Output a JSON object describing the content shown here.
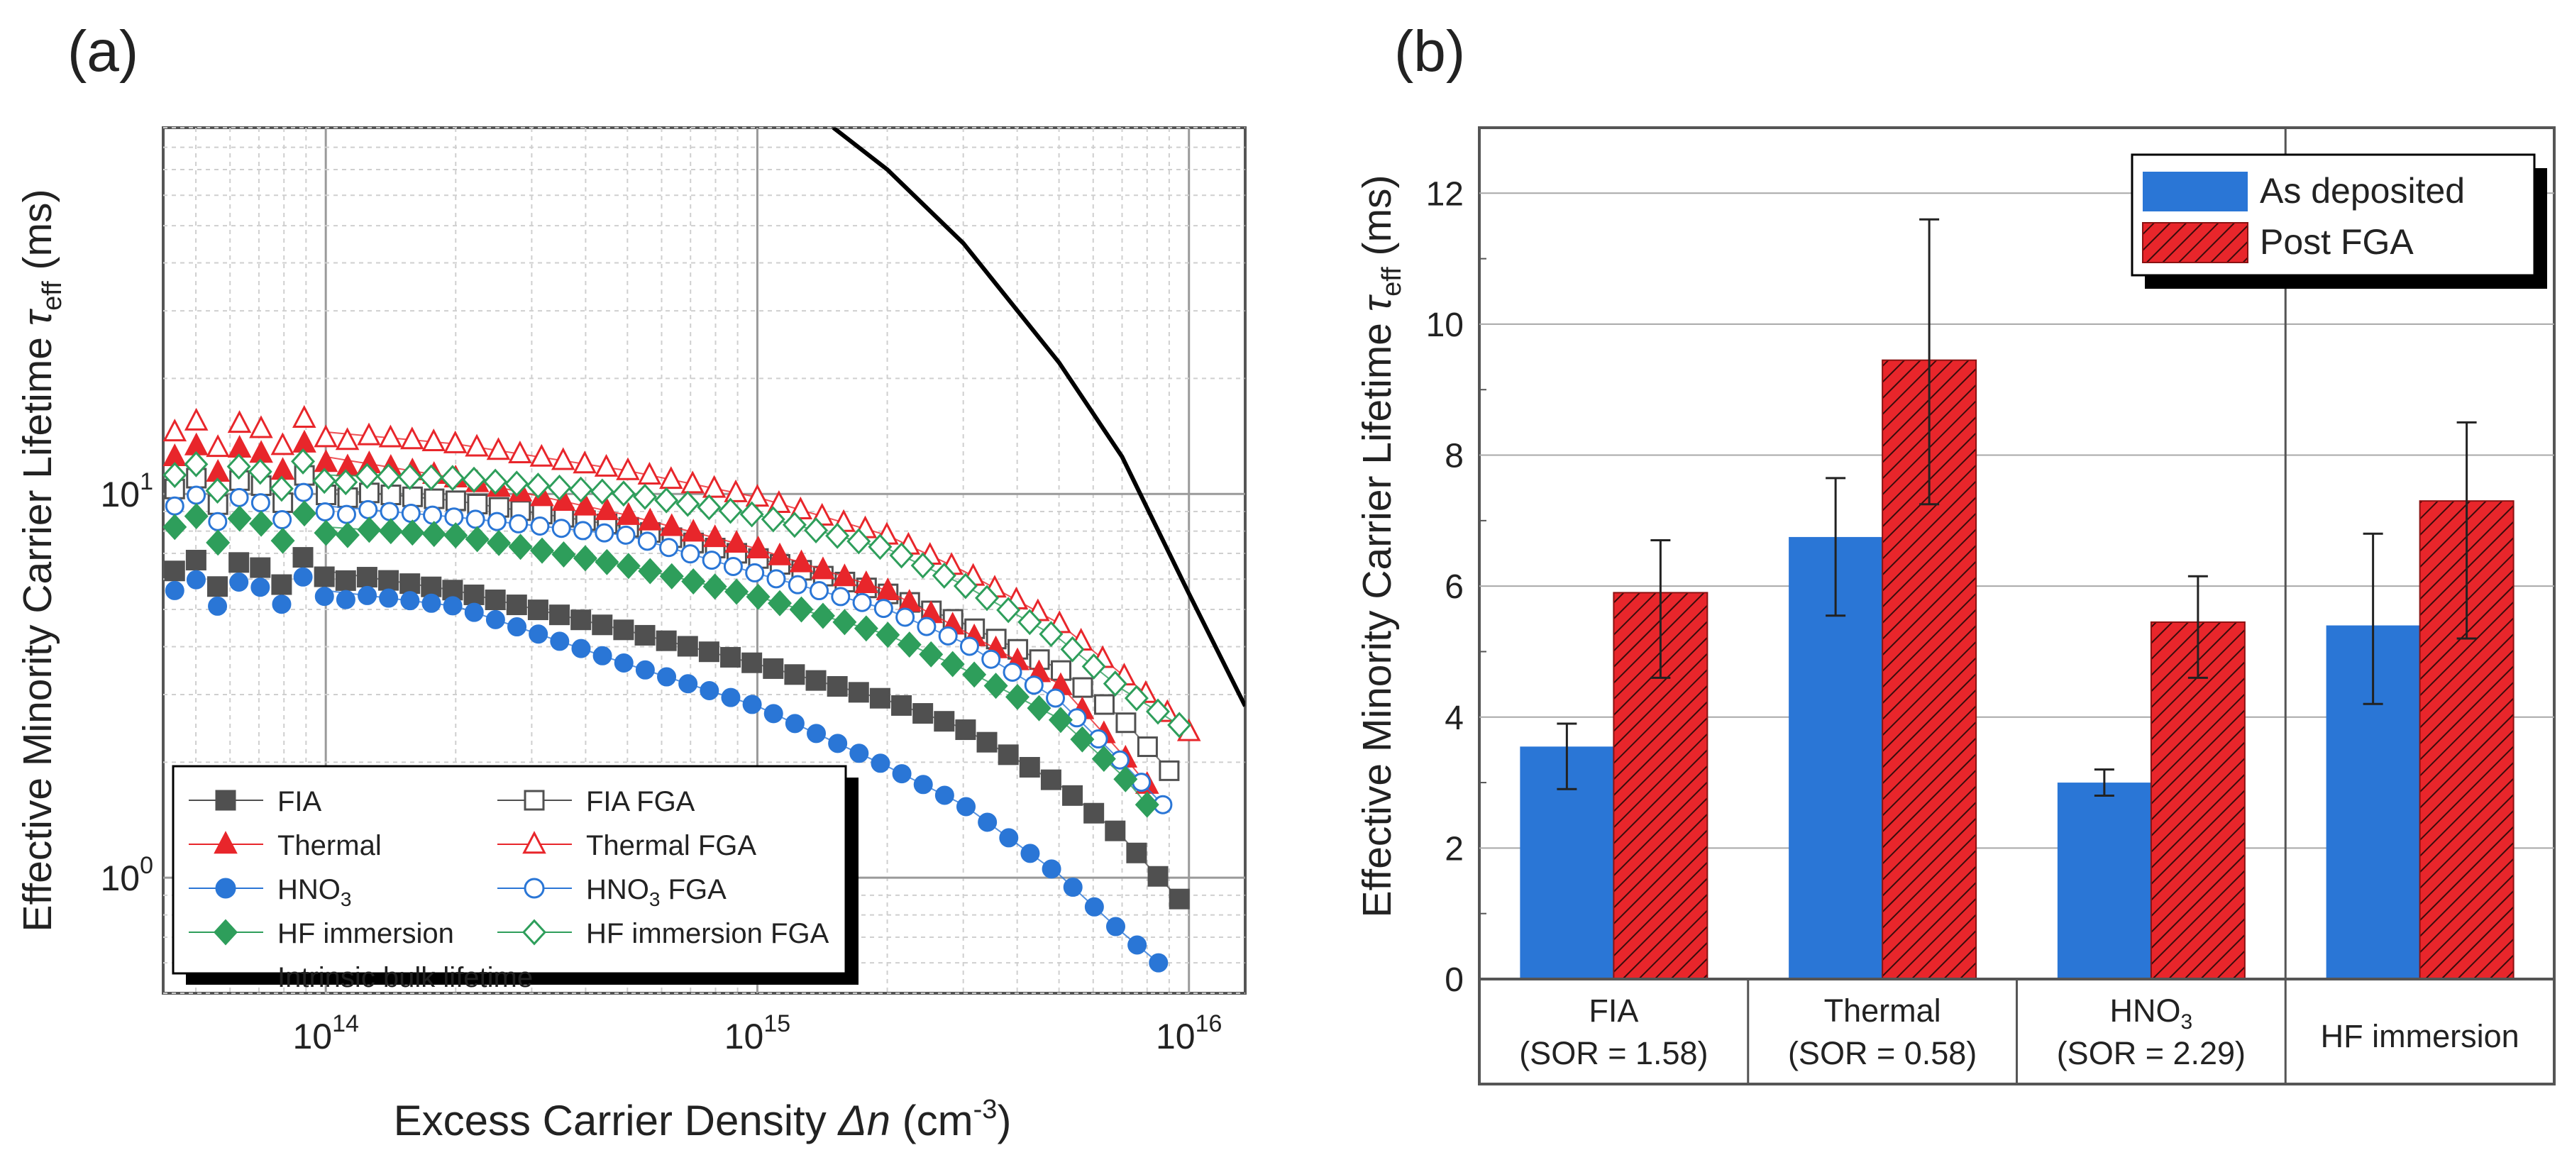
{
  "chart_data": [
    {
      "panel_label": "(a)",
      "type": "scatter",
      "xscale": "log",
      "yscale": "log",
      "xlabel_prefix": "Excess Carrier Density ",
      "xlabel_symbol": "Δn",
      "xlabel_unit": " (cm",
      "xlabel_unit_exp": "-3",
      "xlabel_close": ")",
      "ylabel_prefix": "Effective Minority Carrier Lifetime ",
      "ylabel_symbol": "τ",
      "ylabel_sub": "eff",
      "ylabel_unit": " (ms)",
      "xlim": [
        42000000000000.0,
        1.35e+16
      ],
      "ylim": [
        0.5,
        90
      ],
      "xtick_labels": [
        {
          "value": 100000000000000.0,
          "base": "10",
          "exp": "14"
        },
        {
          "value": 1000000000000000.0,
          "base": "10",
          "exp": "15"
        },
        {
          "value": 1e+16,
          "base": "10",
          "exp": "16"
        }
      ],
      "ytick_labels": [
        {
          "value": 1,
          "base": "10",
          "exp": "0"
        },
        {
          "value": 10,
          "base": "10",
          "exp": "1"
        }
      ],
      "series": [
        {
          "name": "FIA",
          "legend_text": "FIA",
          "legend_sub": "",
          "legend_suffix": "",
          "color": "#505050",
          "marker": "square",
          "filled": true,
          "points": [
            [
              100000000000000.0,
              6.3
            ],
            [
              200000000000000.0,
              5.6
            ],
            [
              500000000000000.0,
              4.4
            ],
            [
              1000000000000000.0,
              3.6
            ],
            [
              2000000000000000.0,
              2.9
            ],
            [
              3000000000000000.0,
              2.45
            ],
            [
              5000000000000000.0,
              1.75
            ],
            [
              7000000000000000.0,
              1.28
            ],
            [
              8000000000000000.0,
              1.08
            ],
            [
              9500000000000000.0,
              0.88
            ]
          ]
        },
        {
          "name": "FIA FGA",
          "legend_text": "FIA FGA",
          "legend_sub": "",
          "legend_suffix": "",
          "color": "#505050",
          "marker": "square",
          "filled": false,
          "points": [
            [
              100000000000000.0,
              10.3
            ],
            [
              200000000000000.0,
              9.6
            ],
            [
              500000000000000.0,
              8.2
            ],
            [
              1000000000000000.0,
              6.8
            ],
            [
              2000000000000000.0,
              5.5
            ],
            [
              3000000000000000.0,
              4.6
            ],
            [
              5000000000000000.0,
              3.5
            ],
            [
              7000000000000000.0,
              2.6
            ],
            [
              9000000000000000.0,
              1.9
            ]
          ]
        },
        {
          "name": "Thermal",
          "legend_text": "Thermal",
          "legend_sub": "",
          "legend_suffix": "",
          "color": "#e8262b",
          "marker": "triangle",
          "filled": true,
          "points": [
            [
              100000000000000.0,
              12.5
            ],
            [
              200000000000000.0,
              11.0
            ],
            [
              500000000000000.0,
              8.8
            ],
            [
              1000000000000000.0,
              7.2
            ],
            [
              2000000000000000.0,
              5.6
            ],
            [
              3000000000000000.0,
              4.4
            ],
            [
              5000000000000000.0,
              3.2
            ],
            [
              7000000000000000.0,
              2.1
            ],
            [
              8000000000000000.0,
              1.75
            ]
          ]
        },
        {
          "name": "Thermal FGA",
          "legend_text": "Thermal FGA",
          "legend_sub": "",
          "legend_suffix": "",
          "color": "#e8262b",
          "marker": "triangle",
          "filled": false,
          "points": [
            [
              100000000000000.0,
              14.5
            ],
            [
              200000000000000.0,
              13.5
            ],
            [
              500000000000000.0,
              11.5
            ],
            [
              1000000000000000.0,
              9.8
            ],
            [
              2000000000000000.0,
              7.8
            ],
            [
              3000000000000000.0,
              6.3
            ],
            [
              5000000000000000.0,
              4.6
            ],
            [
              8000000000000000.0,
              3.0
            ],
            [
              1e+16,
              2.4
            ]
          ]
        },
        {
          "name": "HNO3",
          "legend_text": "HNO",
          "legend_sub": "3",
          "legend_suffix": "",
          "color": "#2a76d6",
          "marker": "circle",
          "filled": true,
          "points": [
            [
              100000000000000.0,
              5.6
            ],
            [
              200000000000000.0,
              5.1
            ],
            [
              500000000000000.0,
              3.6
            ],
            [
              1000000000000000.0,
              2.8
            ],
            [
              2000000000000000.0,
              1.95
            ],
            [
              3000000000000000.0,
              1.55
            ],
            [
              5000000000000000.0,
              1.02
            ],
            [
              7000000000000000.0,
              0.72
            ],
            [
              8500000000000000.0,
              0.6
            ]
          ]
        },
        {
          "name": "HNO3 FGA",
          "legend_text": "HNO",
          "legend_sub": "3",
          "legend_suffix": " FGA",
          "color": "#2a76d6",
          "marker": "circle",
          "filled": false,
          "points": [
            [
              100000000000000.0,
              9.3
            ],
            [
              200000000000000.0,
              8.7
            ],
            [
              500000000000000.0,
              7.8
            ],
            [
              1000000000000000.0,
              6.2
            ],
            [
              2000000000000000.0,
              5.0
            ],
            [
              3000000000000000.0,
              4.1
            ],
            [
              5000000000000000.0,
              2.9
            ],
            [
              7000000000000000.0,
              2.0
            ],
            [
              8700000000000000.0,
              1.55
            ]
          ]
        },
        {
          "name": "HF immersion",
          "legend_text": "HF immersion",
          "legend_sub": "",
          "legend_suffix": "",
          "color": "#2e9e5b",
          "marker": "diamond",
          "filled": true,
          "points": [
            [
              100000000000000.0,
              8.2
            ],
            [
              200000000000000.0,
              7.8
            ],
            [
              500000000000000.0,
              6.5
            ],
            [
              1000000000000000.0,
              5.4
            ],
            [
              2000000000000000.0,
              4.3
            ],
            [
              3000000000000000.0,
              3.5
            ],
            [
              5000000000000000.0,
              2.6
            ],
            [
              7000000000000000.0,
              1.85
            ],
            [
              8000000000000000.0,
              1.55
            ]
          ]
        },
        {
          "name": "HF immersion FGA",
          "legend_text": "HF immersion FGA",
          "legend_sub": "",
          "legend_suffix": "",
          "color": "#2e9e5b",
          "marker": "diamond",
          "filled": false,
          "points": [
            [
              100000000000000.0,
              11.2
            ],
            [
              200000000000000.0,
              11.0
            ],
            [
              500000000000000.0,
              10.0
            ],
            [
              1000000000000000.0,
              8.8
            ],
            [
              2000000000000000.0,
              7.2
            ],
            [
              3000000000000000.0,
              5.8
            ],
            [
              5000000000000000.0,
              4.2
            ],
            [
              7000000000000000.0,
              3.1
            ],
            [
              9500000000000000.0,
              2.5
            ]
          ]
        },
        {
          "name": "Intrinsic bulk lifetime",
          "legend_text": "Intrinsic bulk lifetime",
          "legend_sub": "",
          "legend_suffix": "",
          "color": "#000000",
          "marker": "line",
          "filled": false,
          "points": [
            [
              1500000000000000.0,
              90
            ],
            [
              2000000000000000.0,
              70
            ],
            [
              3000000000000000.0,
              45
            ],
            [
              5000000000000000.0,
              22
            ],
            [
              7000000000000000.0,
              12.5
            ],
            [
              1e+16,
              5.5
            ],
            [
              1.35e+16,
              2.8
            ]
          ]
        }
      ]
    },
    {
      "panel_label": "(b)",
      "type": "bar",
      "ylabel_prefix": "Effective Minority Carrier Lifetime ",
      "ylabel_symbol": "τ",
      "ylabel_sub": "eff",
      "ylabel_unit": " (ms)",
      "ylim": [
        0,
        13
      ],
      "yticks": [
        0,
        2,
        4,
        6,
        8,
        10,
        12
      ],
      "categories": [
        {
          "line1": "FIA",
          "line1_sub": "",
          "line2": "(SOR = 1.58)"
        },
        {
          "line1": "Thermal",
          "line1_sub": "",
          "line2": "(SOR = 0.58)"
        },
        {
          "line1": "HNO",
          "line1_sub": "3",
          "line2": "(SOR = 2.29)"
        },
        {
          "line1": "HF immersion",
          "line1_sub": "",
          "line2": ""
        }
      ],
      "series": [
        {
          "name": "As deposited",
          "color": "#2a76d6",
          "pattern": "solid",
          "values": [
            3.55,
            6.75,
            3.0,
            5.4
          ],
          "errors": [
            [
              2.9,
              3.9
            ],
            [
              5.55,
              7.65
            ],
            [
              2.8,
              3.2
            ],
            [
              4.2,
              6.8
            ]
          ]
        },
        {
          "name": "Post FGA",
          "color": "#e8262b",
          "pattern": "hatched",
          "values": [
            5.9,
            9.45,
            5.45,
            7.3
          ],
          "errors": [
            [
              4.6,
              6.7
            ],
            [
              7.25,
              11.6
            ],
            [
              4.6,
              6.15
            ],
            [
              5.2,
              8.5
            ]
          ]
        }
      ],
      "legend_position": "top-right"
    }
  ]
}
